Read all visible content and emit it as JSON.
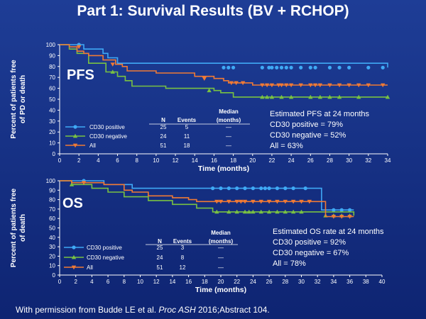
{
  "slide": {
    "title": "Part 1: Survival Results (BV + RCHOP)",
    "footer_prefix": "With permission from Budde LE et al. ",
    "footer_journal": "Proc ASH",
    "footer_suffix": " 2016;Abstract 104."
  },
  "colors": {
    "background": "#1a3a8f",
    "text": "#ffffff",
    "cd30_positive": "#3fa9f5",
    "cd30_negative": "#79c142",
    "all": "#f07a35"
  },
  "chart_data": [
    {
      "type": "line",
      "subtype": "kaplan-meier",
      "label": "PFS",
      "xlabel": "Time (months)",
      "ylabel": [
        "Percent of patients free",
        "of PD or death"
      ],
      "xlim": [
        0,
        34
      ],
      "ylim": [
        0,
        100
      ],
      "xticks": [
        "0",
        "2",
        "4",
        "6",
        "8",
        "10",
        "12",
        "14",
        "16",
        "18",
        "20",
        "22",
        "24",
        "26",
        "28",
        "30",
        "32",
        "34"
      ],
      "yticks": [
        "0",
        "10",
        "20",
        "30",
        "40",
        "50",
        "60",
        "70",
        "80",
        "90",
        "100"
      ],
      "grid": false,
      "series": [
        {
          "name": "CD30 positive",
          "color_key": "cd30_positive",
          "marker": "circle",
          "steps": [
            [
              0,
              100
            ],
            [
              2.5,
              96
            ],
            [
              4.5,
              92
            ],
            [
              5,
              88
            ],
            [
              6,
              83
            ],
            [
              34,
              79
            ]
          ],
          "censored": [
            [
              2,
              100
            ],
            [
              17,
              79
            ],
            [
              17.5,
              79
            ],
            [
              18,
              79
            ],
            [
              21,
              79
            ],
            [
              21.7,
              79
            ],
            [
              22,
              79
            ],
            [
              22.5,
              79
            ],
            [
              23,
              79
            ],
            [
              23.5,
              79
            ],
            [
              24,
              79
            ],
            [
              25,
              79
            ],
            [
              26,
              79
            ],
            [
              26.5,
              79
            ],
            [
              28,
              79
            ],
            [
              29,
              79
            ],
            [
              30,
              79
            ],
            [
              32,
              79
            ],
            [
              33.5,
              79
            ]
          ]
        },
        {
          "name": "CD30 negative",
          "color_key": "cd30_negative",
          "marker": "triangle",
          "steps": [
            [
              0,
              100
            ],
            [
              1,
              96
            ],
            [
              1.8,
              92
            ],
            [
              3,
              83
            ],
            [
              4.8,
              75
            ],
            [
              6,
              71
            ],
            [
              6.8,
              67
            ],
            [
              7.5,
              62
            ],
            [
              11,
              60
            ],
            [
              16,
              58
            ],
            [
              16.7,
              56
            ],
            [
              18,
              52
            ],
            [
              34,
              52
            ]
          ],
          "censored": [
            [
              5.5,
              75
            ],
            [
              15.5,
              58
            ],
            [
              21,
              52
            ],
            [
              21.5,
              52
            ],
            [
              22,
              52
            ],
            [
              23,
              52
            ],
            [
              24,
              52
            ],
            [
              26,
              52
            ],
            [
              27,
              52
            ],
            [
              28,
              52
            ],
            [
              29,
              52
            ],
            [
              31,
              52
            ],
            [
              34,
              52
            ]
          ]
        },
        {
          "name": "All",
          "color_key": "all",
          "marker": "triangle-down",
          "steps": [
            [
              0,
              100
            ],
            [
              1,
              98
            ],
            [
              1.8,
              94
            ],
            [
              2.5,
              92
            ],
            [
              3,
              90
            ],
            [
              4.5,
              86
            ],
            [
              5.8,
              82
            ],
            [
              6.5,
              80
            ],
            [
              7,
              76
            ],
            [
              10,
              74
            ],
            [
              14,
              71
            ],
            [
              16,
              69
            ],
            [
              17,
              67
            ],
            [
              17.5,
              65
            ],
            [
              20,
              63
            ],
            [
              34,
              63
            ]
          ],
          "censored": [
            [
              2,
              98
            ],
            [
              5.5,
              82
            ],
            [
              15,
              69
            ],
            [
              17.8,
              65
            ],
            [
              18.3,
              65
            ],
            [
              19,
              65
            ],
            [
              21,
              63
            ],
            [
              21.5,
              63
            ],
            [
              22,
              63
            ],
            [
              22.7,
              63
            ],
            [
              23,
              63
            ],
            [
              23.5,
              63
            ],
            [
              24,
              63
            ],
            [
              25,
              63
            ],
            [
              26,
              63
            ],
            [
              26.5,
              63
            ],
            [
              27,
              63
            ],
            [
              28,
              63
            ],
            [
              29,
              63
            ],
            [
              30,
              63
            ],
            [
              31,
              63
            ],
            [
              32,
              63
            ],
            [
              33.5,
              63
            ]
          ]
        }
      ],
      "table": {
        "headers": [
          "N",
          "Events",
          "Median",
          "(months)"
        ],
        "rows": [
          {
            "n": "25",
            "events": "5",
            "median": "—"
          },
          {
            "n": "24",
            "events": "11",
            "median": "—"
          },
          {
            "n": "51",
            "events": "18",
            "median": "—"
          }
        ]
      },
      "annotations": [
        "Estimated PFS at 24 months",
        "CD30 positive = 79%",
        "CD30 negative = 52%",
        "All = 63%"
      ]
    },
    {
      "type": "line",
      "subtype": "kaplan-meier",
      "label": "OS",
      "xlabel": "Time (months)",
      "ylabel": [
        "Percent of patients free",
        "of death"
      ],
      "xlim": [
        0,
        40
      ],
      "ylim": [
        0,
        100
      ],
      "xticks": [
        "0",
        "2",
        "4",
        "6",
        "8",
        "10",
        "12",
        "14",
        "16",
        "18",
        "20",
        "22",
        "24",
        "26",
        "28",
        "30",
        "32",
        "34",
        "36",
        "38",
        "40"
      ],
      "yticks": [
        "0",
        "10",
        "20",
        "30",
        "40",
        "50",
        "60",
        "70",
        "80",
        "90",
        "100"
      ],
      "grid": false,
      "series": [
        {
          "name": "CD30 positive",
          "color_key": "cd30_positive",
          "marker": "circle",
          "steps": [
            [
              0,
              100
            ],
            [
              5.5,
              96
            ],
            [
              9,
              92
            ],
            [
              32.5,
              69
            ],
            [
              36.5,
              69
            ]
          ],
          "censored": [
            [
              3,
              100
            ],
            [
              19,
              92
            ],
            [
              20,
              92
            ],
            [
              21,
              92
            ],
            [
              22,
              92
            ],
            [
              23,
              92
            ],
            [
              24,
              92
            ],
            [
              25,
              92
            ],
            [
              25.5,
              92
            ],
            [
              26,
              92
            ],
            [
              27,
              92
            ],
            [
              28,
              92
            ],
            [
              29,
              92
            ],
            [
              30.5,
              92
            ],
            [
              34,
              69
            ],
            [
              35,
              69
            ],
            [
              36,
              69
            ]
          ]
        },
        {
          "name": "CD30 negative",
          "color_key": "cd30_negative",
          "marker": "triangle",
          "steps": [
            [
              0,
              100
            ],
            [
              1.5,
              96
            ],
            [
              4,
              92
            ],
            [
              6,
              88
            ],
            [
              8,
              83
            ],
            [
              11,
              79
            ],
            [
              14,
              75
            ],
            [
              17,
              71
            ],
            [
              19,
              67
            ],
            [
              36.5,
              63
            ]
          ],
          "censored": [
            [
              1.5,
              96
            ],
            [
              19.5,
              67
            ],
            [
              21,
              67
            ],
            [
              22,
              67
            ],
            [
              23,
              67
            ],
            [
              23.5,
              67
            ],
            [
              24,
              67
            ],
            [
              25,
              67
            ],
            [
              26,
              67
            ],
            [
              27,
              67
            ],
            [
              28,
              67
            ],
            [
              29,
              67
            ],
            [
              30,
              67
            ],
            [
              33,
              63
            ],
            [
              34,
              63
            ],
            [
              35,
              63
            ],
            [
              36,
              63
            ]
          ]
        },
        {
          "name": "All",
          "color_key": "all",
          "marker": "triangle-down",
          "steps": [
            [
              0,
              100
            ],
            [
              1.5,
              98
            ],
            [
              5.5,
              96
            ],
            [
              8,
              90
            ],
            [
              9,
              88
            ],
            [
              11,
              84
            ],
            [
              14,
              82
            ],
            [
              16,
              80
            ],
            [
              17,
              78
            ],
            [
              33,
              62
            ],
            [
              36.5,
              62
            ]
          ],
          "censored": [
            [
              3,
              98
            ],
            [
              19.5,
              78
            ],
            [
              20,
              78
            ],
            [
              21,
              78
            ],
            [
              22,
              78
            ],
            [
              22.5,
              78
            ],
            [
              23,
              78
            ],
            [
              24,
              78
            ],
            [
              25,
              78
            ],
            [
              26,
              78
            ],
            [
              27,
              78
            ],
            [
              28,
              78
            ],
            [
              29,
              78
            ],
            [
              30,
              78
            ],
            [
              31,
              78
            ],
            [
              34,
              62
            ],
            [
              35,
              62
            ],
            [
              36,
              62
            ]
          ]
        }
      ],
      "table": {
        "headers": [
          "N",
          "Events",
          "Median",
          "(months)"
        ],
        "rows": [
          {
            "n": "25",
            "events": "3",
            "median": "—"
          },
          {
            "n": "24",
            "events": "8",
            "median": "—"
          },
          {
            "n": "51",
            "events": "12",
            "median": "—"
          }
        ]
      },
      "annotations": [
        "Estimated OS rate at 24 months",
        "CD30 positive = 92%",
        "CD30 negative = 67%",
        "All = 78%"
      ]
    }
  ]
}
